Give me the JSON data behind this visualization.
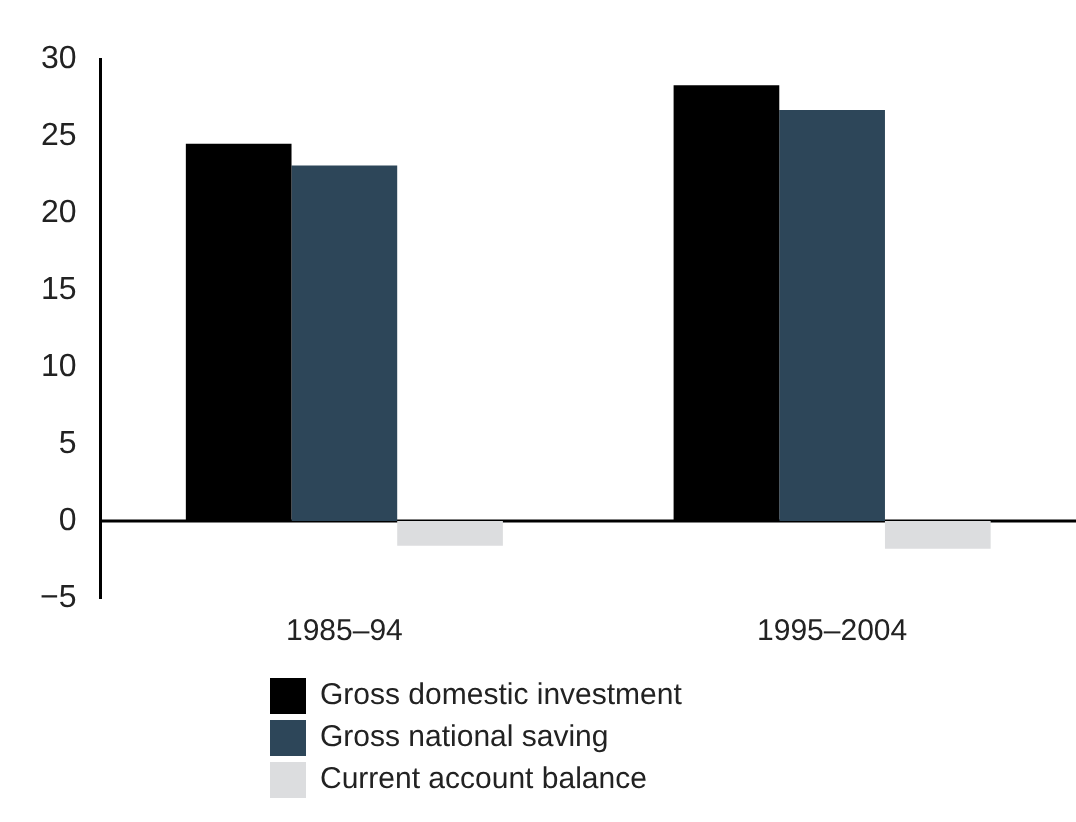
{
  "chart_data": {
    "type": "bar",
    "categories": [
      "1985–94",
      "1995–2004"
    ],
    "series": [
      {
        "name": "Gross domestic investment",
        "color": "#000000",
        "values": [
          24.5,
          28.3
        ]
      },
      {
        "name": "Gross national saving",
        "color": "#2d4659",
        "values": [
          23.1,
          26.7
        ]
      },
      {
        "name": "Current account balance",
        "color": "#dcdddf",
        "values": [
          -1.6,
          -1.8
        ]
      }
    ],
    "ref_lines": [
      {
        "axis": "y",
        "value": 0,
        "color": "#000000"
      }
    ],
    "ylim": [
      -5,
      30
    ],
    "yticks": [
      -5,
      0,
      5,
      10,
      15,
      20,
      25,
      30
    ],
    "grid": false,
    "legend": "bottom"
  }
}
